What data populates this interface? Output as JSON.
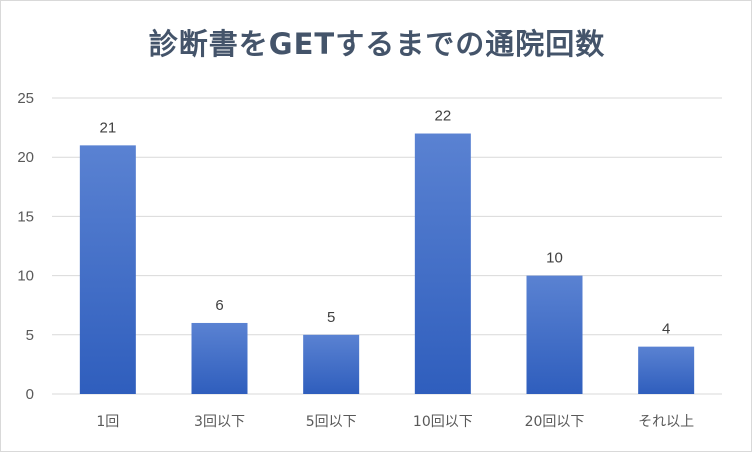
{
  "chart_data": {
    "type": "bar",
    "title": "診断書をGETするまでの通院回数",
    "categories": [
      "1回",
      "3回以下",
      "5回以下",
      "10回以下",
      "20回以下",
      "それ以上"
    ],
    "values": [
      21,
      6,
      5,
      22,
      10,
      4
    ],
    "ylim": [
      0,
      25
    ],
    "yticks": [
      0,
      5,
      10,
      15,
      20,
      25
    ],
    "xlabel": "",
    "ylabel": "",
    "grid": true,
    "data_labels": true,
    "bar_color_top": "#5a82d2",
    "bar_color_bottom": "#2f5ebd",
    "title_color": "#44546a",
    "grid_color": "#d9d9d9"
  }
}
